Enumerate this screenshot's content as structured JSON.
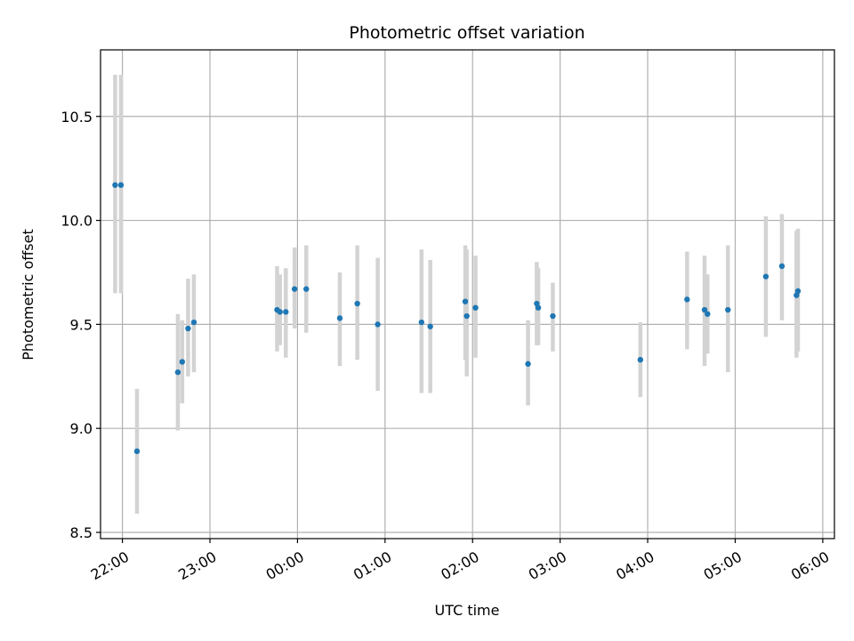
{
  "chart_data": {
    "type": "scatter",
    "title": "Photometric offset variation",
    "xlabel": "UTC time",
    "ylabel": "Photometric offset",
    "grid": true,
    "legend": "none",
    "colors": {
      "point": "#1f77b4",
      "errorbar": "#d3d3d3",
      "grid": "#b0b0b0"
    },
    "x_unit": "UTC time (hh:mm, spanning midnight)",
    "xlim": [
      "21:45",
      "06:08"
    ],
    "ylim": [
      8.47,
      10.82
    ],
    "x_ticks": [
      "22:00",
      "23:00",
      "00:00",
      "01:00",
      "02:00",
      "03:00",
      "04:00",
      "05:00",
      "06:00"
    ],
    "y_ticks": [
      8.5,
      9.0,
      9.5,
      10.0,
      10.5
    ],
    "y_tick_labels": [
      "8.5",
      "9.0",
      "9.5",
      "10.0",
      "10.5"
    ],
    "points": [
      {
        "x": "21:55",
        "y": 10.17,
        "low": 9.65,
        "high": 10.7
      },
      {
        "x": "21:59",
        "y": 10.17,
        "low": 9.65,
        "high": 10.7
      },
      {
        "x": "22:10",
        "y": 8.89,
        "low": 8.59,
        "high": 9.19
      },
      {
        "x": "22:38",
        "y": 9.27,
        "low": 8.99,
        "high": 9.55
      },
      {
        "x": "22:41",
        "y": 9.32,
        "low": 9.12,
        "high": 9.52
      },
      {
        "x": "22:45",
        "y": 9.48,
        "low": 9.25,
        "high": 9.72
      },
      {
        "x": "22:49",
        "y": 9.51,
        "low": 9.27,
        "high": 9.74
      },
      {
        "x": "23:46",
        "y": 9.57,
        "low": 9.37,
        "high": 9.78
      },
      {
        "x": "23:48",
        "y": 9.56,
        "low": 9.4,
        "high": 9.74
      },
      {
        "x": "23:52",
        "y": 9.56,
        "low": 9.34,
        "high": 9.77
      },
      {
        "x": "23:58",
        "y": 9.67,
        "low": 9.48,
        "high": 9.87
      },
      {
        "x": "00:06",
        "y": 9.67,
        "low": 9.46,
        "high": 9.88
      },
      {
        "x": "00:29",
        "y": 9.53,
        "low": 9.3,
        "high": 9.75
      },
      {
        "x": "00:41",
        "y": 9.6,
        "low": 9.33,
        "high": 9.88
      },
      {
        "x": "00:55",
        "y": 9.5,
        "low": 9.18,
        "high": 9.82
      },
      {
        "x": "01:25",
        "y": 9.51,
        "low": 9.17,
        "high": 9.86
      },
      {
        "x": "01:31",
        "y": 9.49,
        "low": 9.17,
        "high": 9.81
      },
      {
        "x": "01:55",
        "y": 9.61,
        "low": 9.33,
        "high": 9.88
      },
      {
        "x": "01:56",
        "y": 9.54,
        "low": 9.25,
        "high": 9.86
      },
      {
        "x": "02:02",
        "y": 9.58,
        "low": 9.34,
        "high": 9.83
      },
      {
        "x": "02:38",
        "y": 9.31,
        "low": 9.11,
        "high": 9.52
      },
      {
        "x": "02:44",
        "y": 9.6,
        "low": 9.4,
        "high": 9.8
      },
      {
        "x": "02:45",
        "y": 9.58,
        "low": 9.4,
        "high": 9.77
      },
      {
        "x": "02:55",
        "y": 9.54,
        "low": 9.37,
        "high": 9.7
      },
      {
        "x": "03:55",
        "y": 9.33,
        "low": 9.15,
        "high": 9.51
      },
      {
        "x": "04:27",
        "y": 9.62,
        "low": 9.38,
        "high": 9.85
      },
      {
        "x": "04:39",
        "y": 9.57,
        "low": 9.3,
        "high": 9.83
      },
      {
        "x": "04:41",
        "y": 9.55,
        "low": 9.36,
        "high": 9.74
      },
      {
        "x": "04:55",
        "y": 9.57,
        "low": 9.27,
        "high": 9.88
      },
      {
        "x": "05:21",
        "y": 9.73,
        "low": 9.44,
        "high": 10.02
      },
      {
        "x": "05:32",
        "y": 9.78,
        "low": 9.52,
        "high": 10.03
      },
      {
        "x": "05:42",
        "y": 9.64,
        "low": 9.34,
        "high": 9.95
      },
      {
        "x": "05:43",
        "y": 9.66,
        "low": 9.37,
        "high": 9.96
      }
    ]
  }
}
